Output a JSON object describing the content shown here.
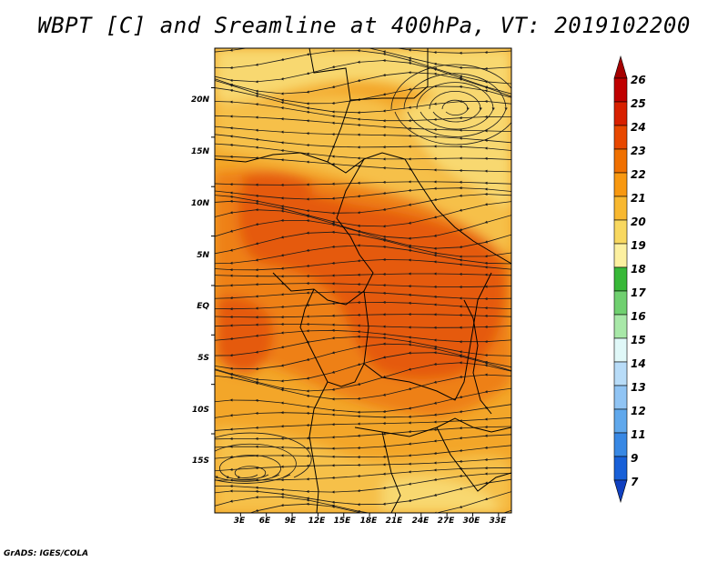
{
  "title": "WBPT [C] and Sreamline at 400hPa, VT: 2019102200",
  "credit": "GrADS: IGES/COLA",
  "axes": {
    "lat_labels": [
      "20N",
      "15N",
      "10N",
      "5N",
      "EQ",
      "5S",
      "10S",
      "15S"
    ],
    "lon_labels": [
      "3E",
      "6E",
      "9E",
      "12E",
      "15E",
      "18E",
      "21E",
      "24E",
      "27E",
      "30E",
      "33E"
    ]
  },
  "colorbar": {
    "labels": [
      "26",
      "25",
      "24",
      "23",
      "22",
      "21",
      "20",
      "19",
      "18",
      "17",
      "16",
      "15",
      "14",
      "13",
      "12",
      "11",
      "9",
      "7"
    ],
    "colors": [
      "#a50000",
      "#c00000",
      "#d82000",
      "#e84800",
      "#f07000",
      "#f89810",
      "#f8b830",
      "#f8d860",
      "#fcf0a0",
      "#38b838",
      "#70d070",
      "#a8e8a8",
      "#e0f8f8",
      "#b8dcf8",
      "#90c4f4",
      "#60a8ec",
      "#3888e4",
      "#1860d8",
      "#1040c0"
    ]
  },
  "map": {
    "field": "wet-bulb potential temperature",
    "palette": {
      "c19": "#f8d870",
      "c20": "#f6c04a",
      "c21": "#f3a629",
      "c22": "#ee8018",
      "c23": "#e55a10",
      "border": "#000000",
      "streamline": "#1a1a1a"
    }
  }
}
